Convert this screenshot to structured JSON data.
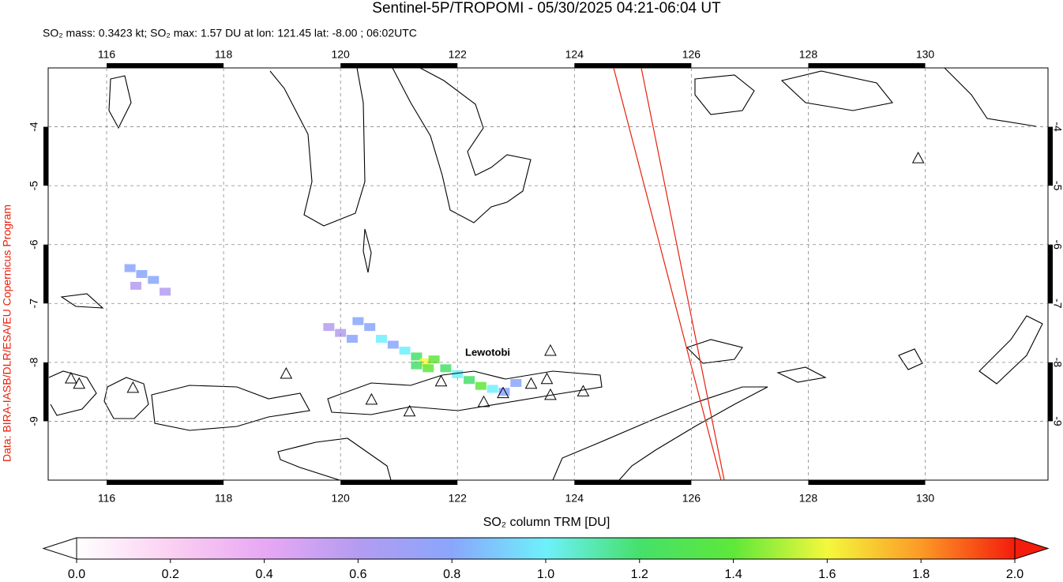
{
  "chart_data": {
    "type": "map",
    "title": "Sentinel-5P/TROPOMI - 05/30/2025 04:21-06:04 UT",
    "subtitle": "SO₂ mass: 0.3423 kt; SO₂ max: 1.57 DU at lon: 121.45 lat: -8.00 ; 06:02UTC",
    "side_text": "Data: BIRA-IASB/DLR/ESA/EU Copernicus Program",
    "annotation": "Lewotobi",
    "xlim": [
      115,
      132.1
    ],
    "ylim": [
      -10,
      -3
    ],
    "xticks": [
      116,
      118,
      120,
      122,
      124,
      126,
      128,
      130
    ],
    "yticks": [
      -4,
      -5,
      -6,
      -7,
      -8,
      -9
    ],
    "grid": true,
    "volcanoes": {
      "lon": [
        115.39,
        115.53,
        116.45,
        119.07,
        120.53,
        121.18,
        121.72,
        122.45,
        122.78,
        123.26,
        123.53,
        123.59,
        124.15,
        123.59,
        129.88
      ],
      "lat": [
        -8.27,
        -8.36,
        -8.43,
        -8.19,
        -8.63,
        -8.83,
        -8.32,
        -8.67,
        -8.52,
        -8.36,
        -8.28,
        -8.55,
        -8.49,
        -7.8,
        -4.53
      ]
    },
    "so2_cells": {
      "lon": [
        116.4,
        116.6,
        116.8,
        117.0,
        116.5,
        120.0,
        120.2,
        120.5,
        120.7,
        120.9,
        121.1,
        121.3,
        121.45,
        121.6,
        121.3,
        121.5,
        121.8,
        122.0,
        122.2,
        122.4,
        122.6,
        122.8,
        123.0,
        119.8,
        120.3
      ],
      "lat": [
        -6.4,
        -6.5,
        -6.6,
        -6.8,
        -6.7,
        -7.5,
        -7.6,
        -7.4,
        -7.6,
        -7.7,
        -7.8,
        -7.9,
        -8.0,
        -7.95,
        -8.05,
        -8.1,
        -8.1,
        -8.2,
        -8.3,
        -8.4,
        -8.45,
        -8.5,
        -8.35,
        -7.4,
        -7.3
      ],
      "values": [
        0.7,
        0.8,
        0.75,
        0.6,
        0.65,
        0.6,
        0.8,
        0.7,
        0.9,
        0.8,
        1.0,
        1.2,
        1.57,
        1.3,
        1.1,
        1.4,
        1.2,
        1.0,
        1.1,
        1.3,
        0.9,
        0.8,
        0.7,
        0.6,
        0.7
      ]
    },
    "colorbar": {
      "label": "SO₂ column TRM [DU]",
      "lim": [
        0,
        2
      ],
      "colors": [
        "#ffffff",
        "#fbd0f2",
        "#e8a8f4",
        "#b49cf0",
        "#8aa6fb",
        "#6ef0fb",
        "#46e06a",
        "#5ee83a",
        "#f4f83c",
        "#fc9a26",
        "#f41c0c"
      ],
      "ticks": [
        {
          "value": 0,
          "label": "0.0"
        },
        {
          "value": 0.2,
          "label": "0.2"
        },
        {
          "value": 0.4,
          "label": "0.4"
        },
        {
          "value": 0.6,
          "label": "0.6"
        },
        {
          "value": 0.8,
          "label": "0.8"
        },
        {
          "value": 1,
          "label": "1.0"
        },
        {
          "value": 1.2,
          "label": "1.2"
        },
        {
          "value": 1.4,
          "label": "1.4"
        },
        {
          "value": 1.6,
          "label": "1.6"
        },
        {
          "value": 1.8,
          "label": "1.8"
        },
        {
          "value": 2,
          "label": "2.0"
        }
      ]
    }
  }
}
